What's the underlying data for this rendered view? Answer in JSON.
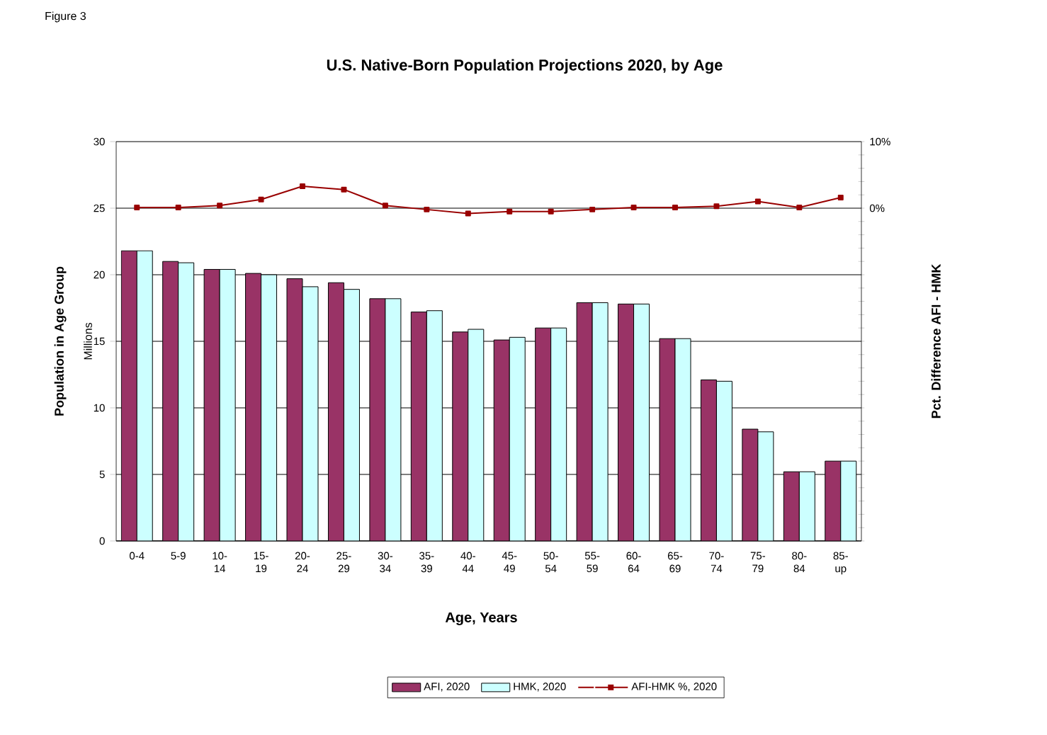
{
  "chart_data": {
    "type": "bar",
    "title": "U.S. Native-Born Population Projections 2020, by Age",
    "xlabel": "Age, Years",
    "ylabel": "Population in Age Group",
    "y2label": "Pct. Difference AFI - HMK",
    "annotations": [
      "Figure 3",
      "Millions"
    ],
    "categories": [
      "0-4",
      "5-9",
      "10-14",
      "15-19",
      "20-24",
      "25-29",
      "30-34",
      "35-39",
      "40-44",
      "45-49",
      "50-54",
      "55-59",
      "60-64",
      "65-69",
      "70-74",
      "75-79",
      "80-84",
      "85-up"
    ],
    "series": [
      {
        "name": "AFI, 2020",
        "color": "#993366",
        "values": [
          21.8,
          21.0,
          20.4,
          20.1,
          19.7,
          19.4,
          18.2,
          17.2,
          15.7,
          15.1,
          16.0,
          17.9,
          17.8,
          15.2,
          12.1,
          8.4,
          5.2,
          6.0
        ]
      },
      {
        "name": "HMK, 2020",
        "color": "#ccffff",
        "values": [
          21.8,
          20.9,
          20.4,
          20.0,
          19.1,
          18.9,
          18.2,
          17.3,
          15.9,
          15.3,
          16.0,
          17.9,
          17.8,
          15.2,
          12.0,
          8.2,
          5.2,
          6.0
        ]
      },
      {
        "name": "AFI-HMK %, 2020",
        "type": "line",
        "axis": "y2",
        "color": "#990000",
        "values": [
          0.1,
          0.1,
          0.4,
          1.3,
          3.3,
          2.8,
          0.4,
          -0.2,
          -0.8,
          -0.5,
          -0.5,
          -0.2,
          0.1,
          0.1,
          0.3,
          1.0,
          0.1,
          1.6
        ]
      }
    ],
    "ylim": [
      0,
      30
    ],
    "yticks": [
      0,
      5,
      10,
      15,
      20,
      25,
      30
    ],
    "y2lim": [
      -50,
      10
    ],
    "y2ticks": [
      {
        "value": -50,
        "label": null
      },
      {
        "value": -48,
        "label": null
      },
      {
        "value": -46,
        "label": null
      },
      {
        "value": -44,
        "label": null
      },
      {
        "value": -42,
        "label": null
      },
      {
        "value": -40,
        "label": null
      },
      {
        "value": -38,
        "label": null
      },
      {
        "value": -36,
        "label": null
      },
      {
        "value": -34,
        "label": null
      },
      {
        "value": -32,
        "label": null
      },
      {
        "value": -30,
        "label": null
      },
      {
        "value": -28,
        "label": null
      },
      {
        "value": -26,
        "label": null
      },
      {
        "value": -24,
        "label": null
      },
      {
        "value": -22,
        "label": null
      },
      {
        "value": -20,
        "label": null
      },
      {
        "value": -18,
        "label": null
      },
      {
        "value": -16,
        "label": null
      },
      {
        "value": -14,
        "label": null
      },
      {
        "value": -12,
        "label": null
      },
      {
        "value": -10,
        "label": null
      },
      {
        "value": -8,
        "label": null
      },
      {
        "value": -6,
        "label": null
      },
      {
        "value": -4,
        "label": null
      },
      {
        "value": -2,
        "label": null
      },
      {
        "value": 0,
        "label": "0%"
      },
      {
        "value": 2,
        "label": null
      },
      {
        "value": 4,
        "label": null
      },
      {
        "value": 6,
        "label": null
      },
      {
        "value": 8,
        "label": null
      },
      {
        "value": 10,
        "label": "10%"
      }
    ],
    "grid": "y",
    "legend": "bottom",
    "marker": "square"
  }
}
